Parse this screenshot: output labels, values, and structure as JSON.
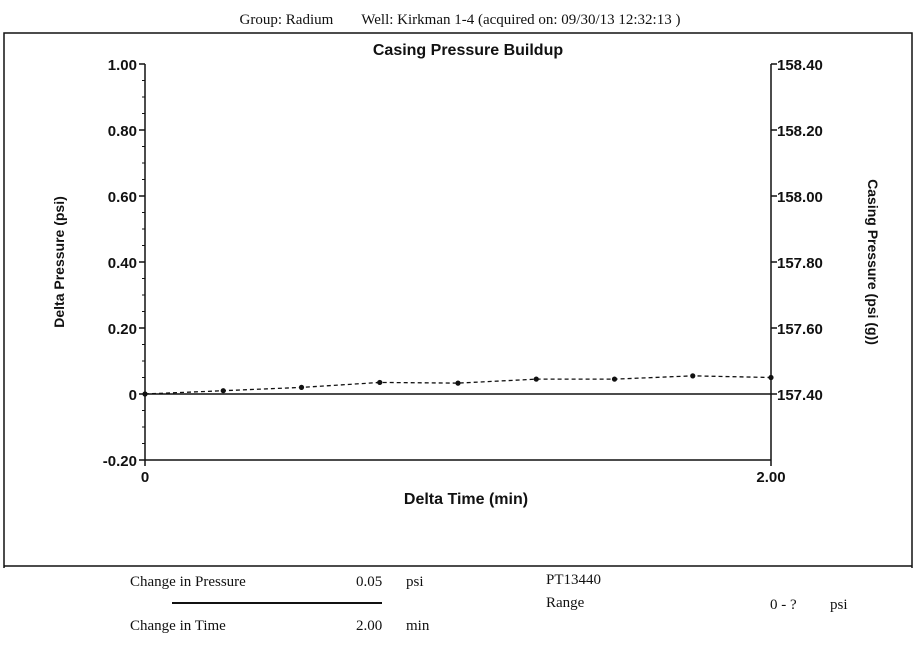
{
  "header": {
    "group": "Group: Radium",
    "well": "Well: Kirkman 1-4 (acquired on: 09/30/13 12:32:13 )"
  },
  "chart_data": {
    "type": "line",
    "title": "Casing Pressure Buildup",
    "xlabel": "Delta Time (min)",
    "ylabel": "Delta Pressure (psi)",
    "y2label": "Casing Pressure (psi (g))",
    "xlim": [
      0,
      2.0
    ],
    "ylim": [
      -0.2,
      1.0
    ],
    "y2lim": [
      157.4,
      158.4
    ],
    "x_ticks": [
      "0",
      "2.00"
    ],
    "y_ticks": [
      "-0.20",
      "0",
      "0.20",
      "0.40",
      "0.60",
      "0.80",
      "1.00"
    ],
    "y2_ticks": [
      "157.40",
      "157.60",
      "157.80",
      "158.00",
      "158.20",
      "158.40"
    ],
    "grid": false,
    "series": [
      {
        "style": "dashed-with-markers",
        "x": [
          0.0,
          0.25,
          0.5,
          0.75,
          1.0,
          1.25,
          1.5,
          1.75,
          2.0
        ],
        "y": [
          0.0,
          0.01,
          0.02,
          0.035,
          0.033,
          0.045,
          0.045,
          0.055,
          0.05
        ]
      },
      {
        "style": "solid",
        "x": [
          0.0,
          2.0
        ],
        "y": [
          0.0,
          0.0
        ]
      }
    ]
  },
  "footer": {
    "change_pressure_label": "Change in Pressure",
    "change_pressure_value": "0.05",
    "change_pressure_unit": "psi",
    "change_time_label": "Change in Time",
    "change_time_value": "2.00",
    "change_time_unit": "min",
    "sensor": "PT13440",
    "range_label": "Range",
    "range_value": "0 - ?",
    "range_unit": "psi"
  }
}
